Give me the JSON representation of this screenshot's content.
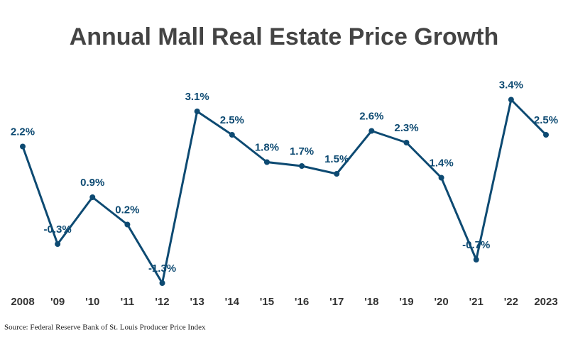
{
  "chart_data": {
    "type": "line",
    "title": "Annual Mall Real Estate Price Growth",
    "categories": [
      "2008",
      "'09",
      "'10",
      "'11",
      "'12",
      "'13",
      "'14",
      "'15",
      "'16",
      "'17",
      "'18",
      "'19",
      "'20",
      "'21",
      "'22",
      "2023"
    ],
    "values": [
      2.2,
      -0.3,
      0.9,
      0.2,
      -1.3,
      3.1,
      2.5,
      1.8,
      1.7,
      1.5,
      2.6,
      2.3,
      1.4,
      -0.7,
      3.4,
      2.5
    ],
    "value_labels": [
      "2.2%",
      "-0.3%",
      "0.9%",
      "0.2%",
      "-1.3%",
      "3.1%",
      "2.5%",
      "1.8%",
      "1.7%",
      "1.5%",
      "2.6%",
      "2.3%",
      "1.4%",
      "-0.7%",
      "3.4%",
      "2.5%"
    ],
    "color": "#0d4a72",
    "ylim": [
      -1.5,
      3.5
    ],
    "source": "Source: Federal Reserve Bank of St. Louis Producer Price Index"
  }
}
